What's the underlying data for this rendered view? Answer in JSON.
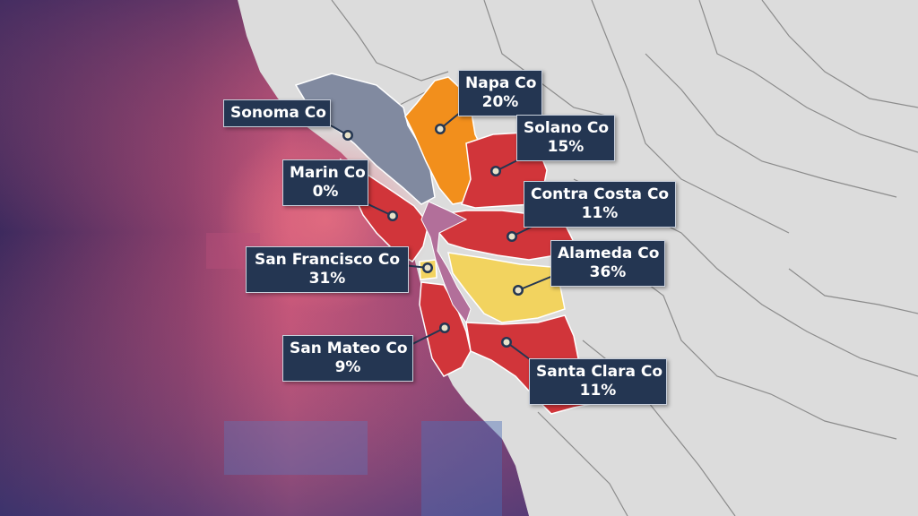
{
  "colors": {
    "ocean_dark": "#3d2a5e",
    "ocean_mid": "#8a3f6b",
    "ocean_light": "#d65e78",
    "land": "#dcdcdc",
    "county_border": "#ffffff",
    "label_bg": "#243652",
    "label_text": "#ffffff",
    "high": "#f2d35f",
    "mid_high": "#f28f1c",
    "mid": "#d1353a",
    "none": "#818aa0"
  },
  "counties": [
    {
      "id": "sonoma",
      "name": "Sonoma Co",
      "value": "",
      "fill": "#818aa0"
    },
    {
      "id": "napa",
      "name": "Napa Co",
      "value": "20%",
      "fill": "#f28f1c"
    },
    {
      "id": "solano",
      "name": "Solano Co",
      "value": "15%",
      "fill": "#d1353a"
    },
    {
      "id": "marin",
      "name": "Marin Co",
      "value": "0%",
      "fill": "#d1353a"
    },
    {
      "id": "contra-costa",
      "name": "Contra Costa Co",
      "value": "11%",
      "fill": "#d1353a"
    },
    {
      "id": "san-francisco",
      "name": "San Francisco Co",
      "value": "31%",
      "fill": "#f2d35f"
    },
    {
      "id": "alameda",
      "name": "Alameda Co",
      "value": "36%",
      "fill": "#f2d35f"
    },
    {
      "id": "san-mateo",
      "name": "San Mateo Co",
      "value": "9%",
      "fill": "#d1353a"
    },
    {
      "id": "santa-clara",
      "name": "Santa Clara Co",
      "value": "11%",
      "fill": "#d1353a"
    }
  ]
}
